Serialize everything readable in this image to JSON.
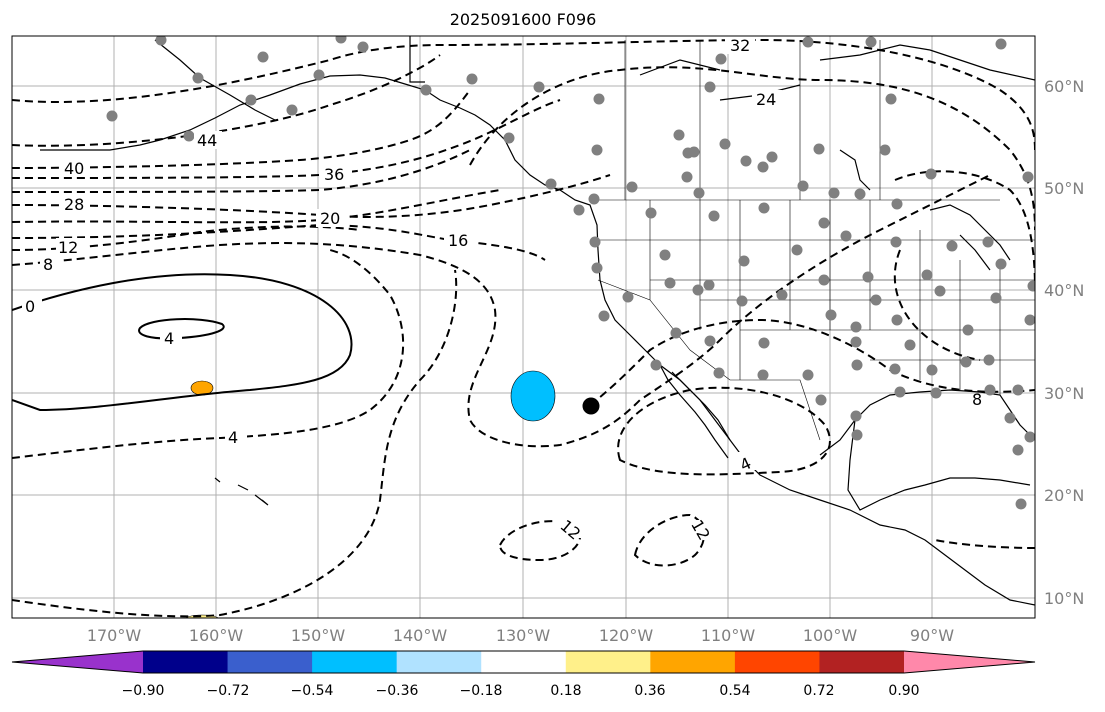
{
  "title": "2025091600 F096",
  "map": {
    "projection": "PlateCarree",
    "lon_range": [
      -179,
      -79
    ],
    "lat_range": [
      8,
      65
    ],
    "contour_labels": [
      "32",
      "24",
      "44",
      "40",
      "36",
      "28",
      "20",
      "16",
      "12",
      "8",
      "0",
      "4",
      "4",
      "4",
      "12",
      "12",
      "8"
    ],
    "lat_labels": [
      "60°N",
      "50°N",
      "40°N",
      "30°N",
      "20°N",
      "10°N"
    ],
    "lon_labels": [
      "170°W",
      "160°W",
      "150°W",
      "140°W",
      "130°W",
      "120°W",
      "110°W",
      "100°W",
      "90°W"
    ],
    "fill_colors": {
      "negative_blob": "#00bfff",
      "positive_blob": "#ffa500",
      "positive_edge": "#ffd700"
    },
    "marker": {
      "lon": -123.2,
      "lat": 28.8,
      "color": "#000000"
    }
  },
  "colorbar": {
    "ticks": [
      "−0.90",
      "−0.72",
      "−0.54",
      "−0.36",
      "−0.18",
      "0.18",
      "0.36",
      "0.54",
      "0.72",
      "0.90"
    ],
    "colors": [
      "#9932cc",
      "#00008b",
      "#3a5fcd",
      "#00bfff",
      "#b0e2ff",
      "#ffffff",
      "#fff08a",
      "#ffa500",
      "#ff4500",
      "#b22222",
      "#ff88aa"
    ]
  }
}
